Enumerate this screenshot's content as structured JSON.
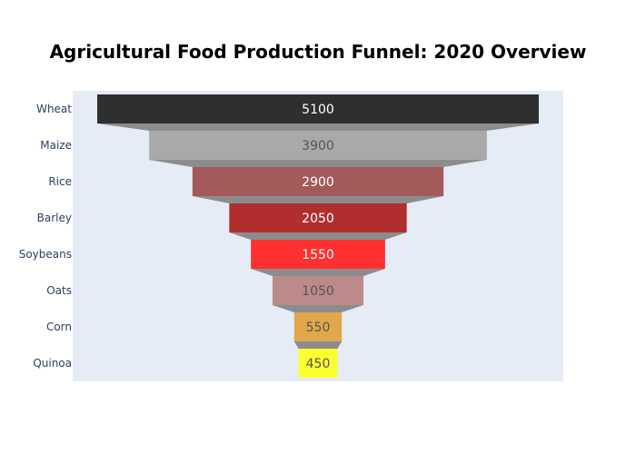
{
  "chart_data": {
    "type": "funnel",
    "title": "Agricultural Food Production Funnel: 2020 Overview",
    "categories": [
      "Wheat",
      "Maize",
      "Rice",
      "Barley",
      "Soybeans",
      "Oats",
      "Corn",
      "Quinoa"
    ],
    "values": [
      5100,
      3900,
      2900,
      2050,
      1550,
      1050,
      550,
      450
    ],
    "colors": [
      "#2f2f2f",
      "#a9a9a9",
      "#a45a5a",
      "#b02e2e",
      "#ff3030",
      "#bc8a8a",
      "#e0a84a",
      "#fbff2e"
    ],
    "value_label_colors": [
      "#ffffff",
      "#555555",
      "#ffffff",
      "#ffffff",
      "#ffffff",
      "#555555",
      "#555555",
      "#555555"
    ],
    "connector_color": "#8c8c8c",
    "plot_background": "#e5ecf6",
    "category_label_color": "#2a3f5f",
    "grid": false,
    "legend": "none"
  }
}
